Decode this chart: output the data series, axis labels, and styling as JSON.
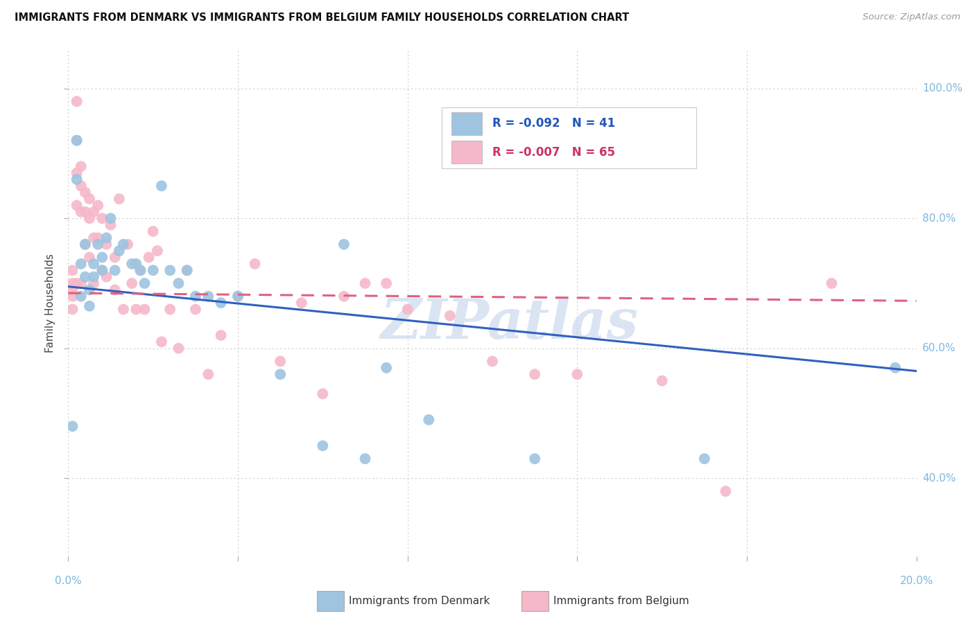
{
  "title": "IMMIGRANTS FROM DENMARK VS IMMIGRANTS FROM BELGIUM FAMILY HOUSEHOLDS CORRELATION CHART",
  "source": "Source: ZipAtlas.com",
  "ylabel": "Family Households",
  "y_ticks": [
    0.4,
    0.6,
    0.8,
    1.0
  ],
  "y_tick_labels": [
    "40.0%",
    "60.0%",
    "80.0%",
    "100.0%"
  ],
  "x_ticks": [
    0.0,
    0.04,
    0.08,
    0.12,
    0.16,
    0.2
  ],
  "xlim": [
    0.0,
    0.2
  ],
  "ylim": [
    0.28,
    1.06
  ],
  "denmark_R": -0.092,
  "denmark_N": 41,
  "belgium_R": -0.007,
  "belgium_N": 65,
  "denmark_color": "#9EC4E0",
  "belgium_color": "#F5B8C8",
  "denmark_line_color": "#3060C0",
  "belgium_line_color": "#E06080",
  "watermark": "ZIPatlas",
  "denmark_trendline_x0": 0.0,
  "denmark_trendline_y0": 0.695,
  "denmark_trendline_x1": 0.2,
  "denmark_trendline_y1": 0.565,
  "belgium_trendline_x0": 0.0,
  "belgium_trendline_y0": 0.685,
  "belgium_trendline_x1": 0.2,
  "belgium_trendline_y1": 0.673,
  "denmark_x": [
    0.001,
    0.002,
    0.002,
    0.003,
    0.003,
    0.004,
    0.004,
    0.005,
    0.005,
    0.006,
    0.006,
    0.007,
    0.008,
    0.008,
    0.009,
    0.01,
    0.011,
    0.012,
    0.013,
    0.015,
    0.016,
    0.017,
    0.018,
    0.02,
    0.022,
    0.024,
    0.026,
    0.028,
    0.03,
    0.033,
    0.036,
    0.04,
    0.05,
    0.06,
    0.065,
    0.07,
    0.075,
    0.085,
    0.11,
    0.15,
    0.195
  ],
  "denmark_y": [
    0.48,
    0.92,
    0.86,
    0.73,
    0.68,
    0.76,
    0.71,
    0.69,
    0.665,
    0.73,
    0.71,
    0.76,
    0.74,
    0.72,
    0.77,
    0.8,
    0.72,
    0.75,
    0.76,
    0.73,
    0.73,
    0.72,
    0.7,
    0.72,
    0.85,
    0.72,
    0.7,
    0.72,
    0.68,
    0.68,
    0.67,
    0.68,
    0.56,
    0.45,
    0.76,
    0.43,
    0.57,
    0.49,
    0.43,
    0.43,
    0.57
  ],
  "belgium_x": [
    0.001,
    0.001,
    0.001,
    0.001,
    0.001,
    0.002,
    0.002,
    0.002,
    0.002,
    0.002,
    0.003,
    0.003,
    0.003,
    0.003,
    0.004,
    0.004,
    0.004,
    0.005,
    0.005,
    0.005,
    0.006,
    0.006,
    0.006,
    0.007,
    0.007,
    0.008,
    0.008,
    0.009,
    0.009,
    0.01,
    0.011,
    0.011,
    0.012,
    0.013,
    0.014,
    0.015,
    0.016,
    0.017,
    0.018,
    0.019,
    0.02,
    0.021,
    0.022,
    0.024,
    0.026,
    0.028,
    0.03,
    0.033,
    0.036,
    0.04,
    0.044,
    0.05,
    0.055,
    0.06,
    0.065,
    0.07,
    0.075,
    0.08,
    0.09,
    0.1,
    0.11,
    0.12,
    0.14,
    0.155,
    0.18
  ],
  "belgium_y": [
    0.68,
    0.7,
    0.72,
    0.69,
    0.66,
    0.98,
    0.92,
    0.87,
    0.82,
    0.7,
    0.88,
    0.85,
    0.81,
    0.7,
    0.84,
    0.81,
    0.76,
    0.83,
    0.8,
    0.74,
    0.81,
    0.77,
    0.7,
    0.82,
    0.77,
    0.72,
    0.8,
    0.76,
    0.71,
    0.79,
    0.74,
    0.69,
    0.83,
    0.66,
    0.76,
    0.7,
    0.66,
    0.72,
    0.66,
    0.74,
    0.78,
    0.75,
    0.61,
    0.66,
    0.6,
    0.72,
    0.66,
    0.56,
    0.62,
    0.68,
    0.73,
    0.58,
    0.67,
    0.53,
    0.68,
    0.7,
    0.7,
    0.66,
    0.65,
    0.58,
    0.56,
    0.56,
    0.55,
    0.38,
    0.7
  ]
}
